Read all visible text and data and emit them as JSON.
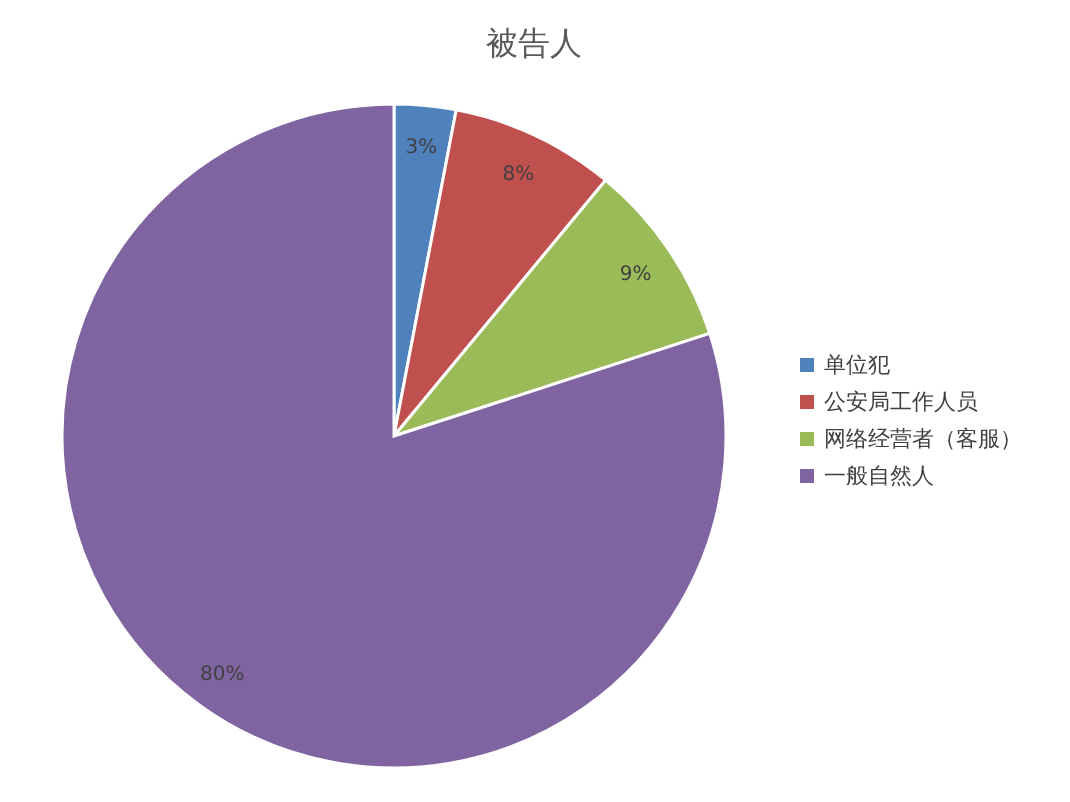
{
  "chart_data": {
    "type": "pie",
    "title": "被告人",
    "categories": [
      "单位犯",
      "公安局工作人员",
      "网络经营者（客服）",
      "一般自然人"
    ],
    "values": [
      3,
      8,
      9,
      80
    ],
    "colors": [
      "#4f81bd",
      "#c0504d",
      "#9bbb59",
      "#8064a2"
    ],
    "value_labels": [
      "3%",
      "8%",
      "9%",
      "80%"
    ],
    "legend": "right"
  }
}
